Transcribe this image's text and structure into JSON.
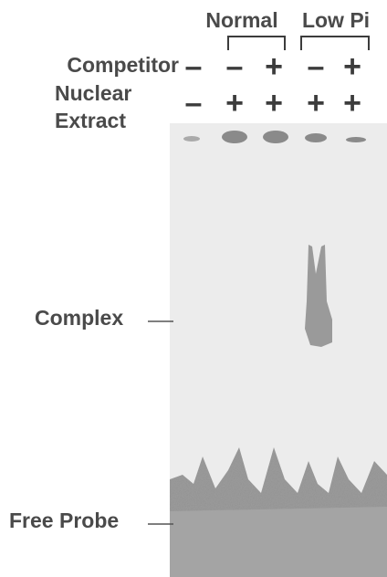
{
  "groups": [
    {
      "label": "Normal"
    },
    {
      "label": "Low Pi"
    }
  ],
  "rows": [
    {
      "label": [
        "Competitor"
      ],
      "lanes": [
        "–",
        "–",
        "+",
        "–",
        "+"
      ]
    },
    {
      "label": [
        "Nuclear",
        "Extract"
      ],
      "lanes": [
        "–",
        "+",
        "+",
        "+",
        "+"
      ]
    }
  ],
  "markers": [
    {
      "label": "Complex"
    },
    {
      "label": "Free Probe"
    }
  ]
}
